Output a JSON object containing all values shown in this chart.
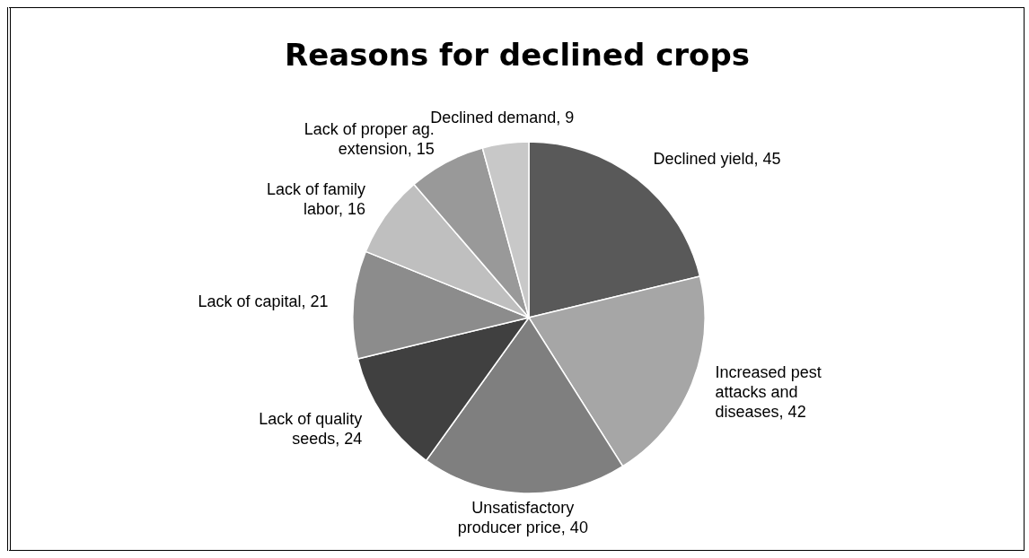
{
  "chart_data": {
    "type": "pie",
    "title": "Reasons for declined crops",
    "categories": [
      "Declined yield",
      "Increased pest attacks and diseases",
      "Unsatisfactory producer price",
      "Lack of quality seeds",
      "Lack of capital",
      "Lack of family labor",
      "Lack of proper ag. extension",
      "Declined demand"
    ],
    "values": [
      45,
      42,
      40,
      24,
      21,
      16,
      15,
      9
    ],
    "value_labels": [
      ", 45",
      ", 42",
      ", 40",
      ", 24",
      ", 21",
      ", 16",
      ", 15",
      ", 9"
    ],
    "colors": [
      "#595959",
      "#a6a6a6",
      "#7f7f7f",
      "#404040",
      "#8c8c8c",
      "#bfbfbf",
      "#999999",
      "#c8c8c8"
    ]
  }
}
